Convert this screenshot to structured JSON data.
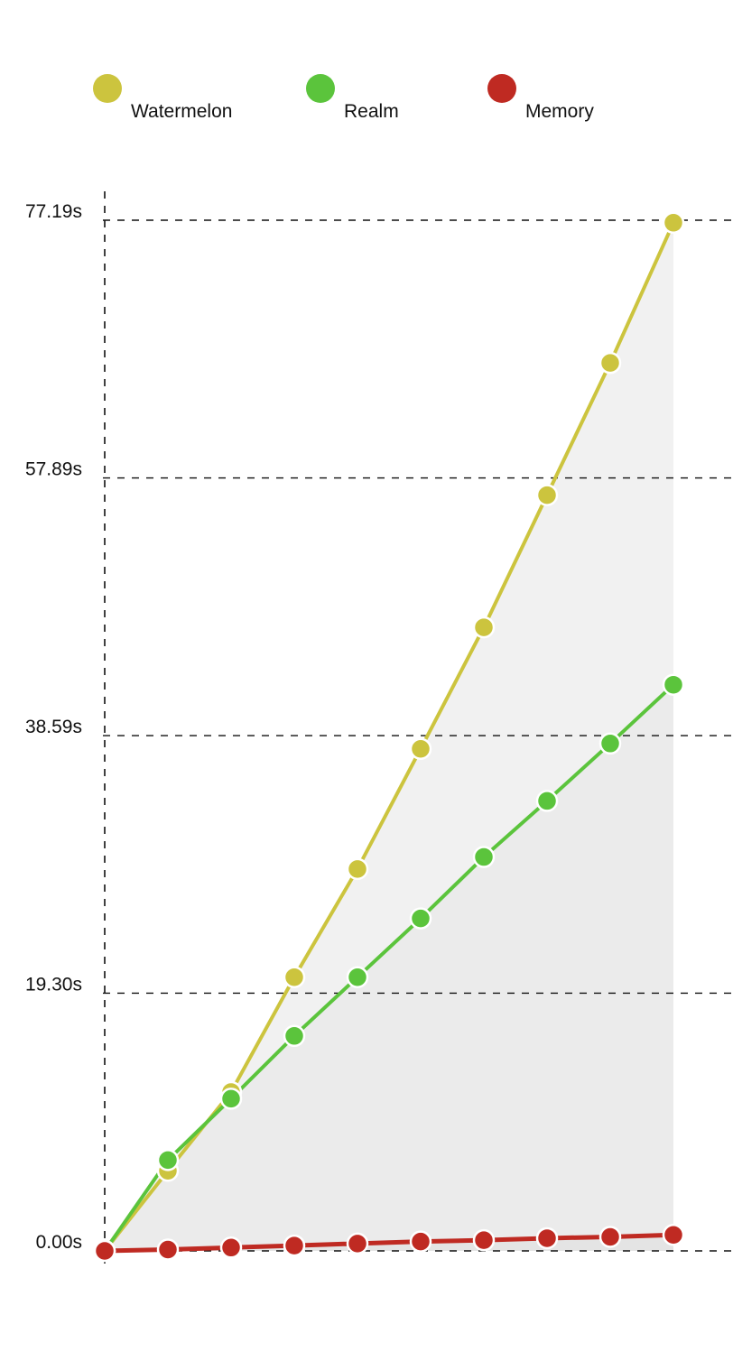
{
  "chart_data": {
    "type": "line",
    "title": "",
    "xlabel": "",
    "ylabel": "",
    "ylim": [
      0,
      77.19
    ],
    "yticks": [
      "0.00s",
      "19.30s",
      "38.59s",
      "57.89s",
      "77.19s"
    ],
    "ytick_values": [
      0,
      19.3,
      38.59,
      57.89,
      77.19
    ],
    "x": [
      0,
      1,
      2,
      3,
      4,
      5,
      6,
      7,
      8,
      9
    ],
    "grid": true,
    "legend_position": "top",
    "series": [
      {
        "name": "Watermelon",
        "color": "#CCC43E",
        "values": [
          0.0,
          6.0,
          11.9,
          20.5,
          28.6,
          37.6,
          46.7,
          56.6,
          66.5,
          77.0
        ]
      },
      {
        "name": "Realm",
        "color": "#5BC43C",
        "values": [
          0.0,
          6.8,
          11.4,
          16.1,
          20.5,
          24.9,
          29.5,
          33.7,
          38.0,
          42.4
        ]
      },
      {
        "name": "Memory",
        "color": "#BF2A22",
        "values": [
          0.0,
          0.1,
          0.25,
          0.4,
          0.55,
          0.7,
          0.8,
          0.95,
          1.05,
          1.2
        ]
      }
    ]
  }
}
